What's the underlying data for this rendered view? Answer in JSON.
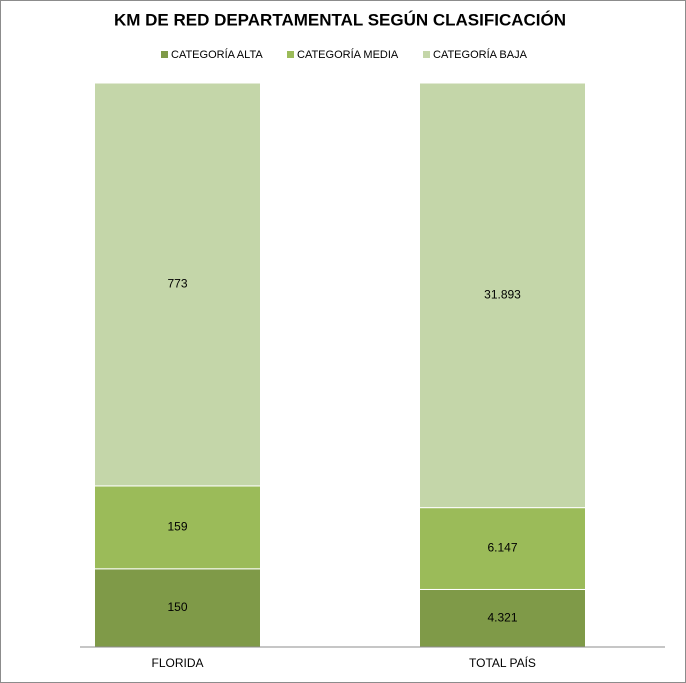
{
  "chart_data": {
    "type": "bar",
    "stacking": "percent",
    "title": "KM DE RED DEPARTAMENTAL SEGÚN CLASIFICACIÓN",
    "categories": [
      "FLORIDA",
      "TOTAL PAÍS"
    ],
    "series": [
      {
        "name": "CATEGORÍA ALTA",
        "color": "#7f9a48",
        "values": [
          150,
          4321
        ],
        "value_labels": [
          "150",
          "4.321"
        ]
      },
      {
        "name": "CATEGORÍA MEDIA",
        "color": "#9bbb59",
        "values": [
          159,
          6147
        ],
        "value_labels": [
          "159",
          "6.147"
        ]
      },
      {
        "name": "CATEGORÍA BAJA",
        "color": "#c4d6a9",
        "values": [
          773,
          31893
        ],
        "value_labels": [
          "773",
          "31.893"
        ]
      }
    ]
  }
}
